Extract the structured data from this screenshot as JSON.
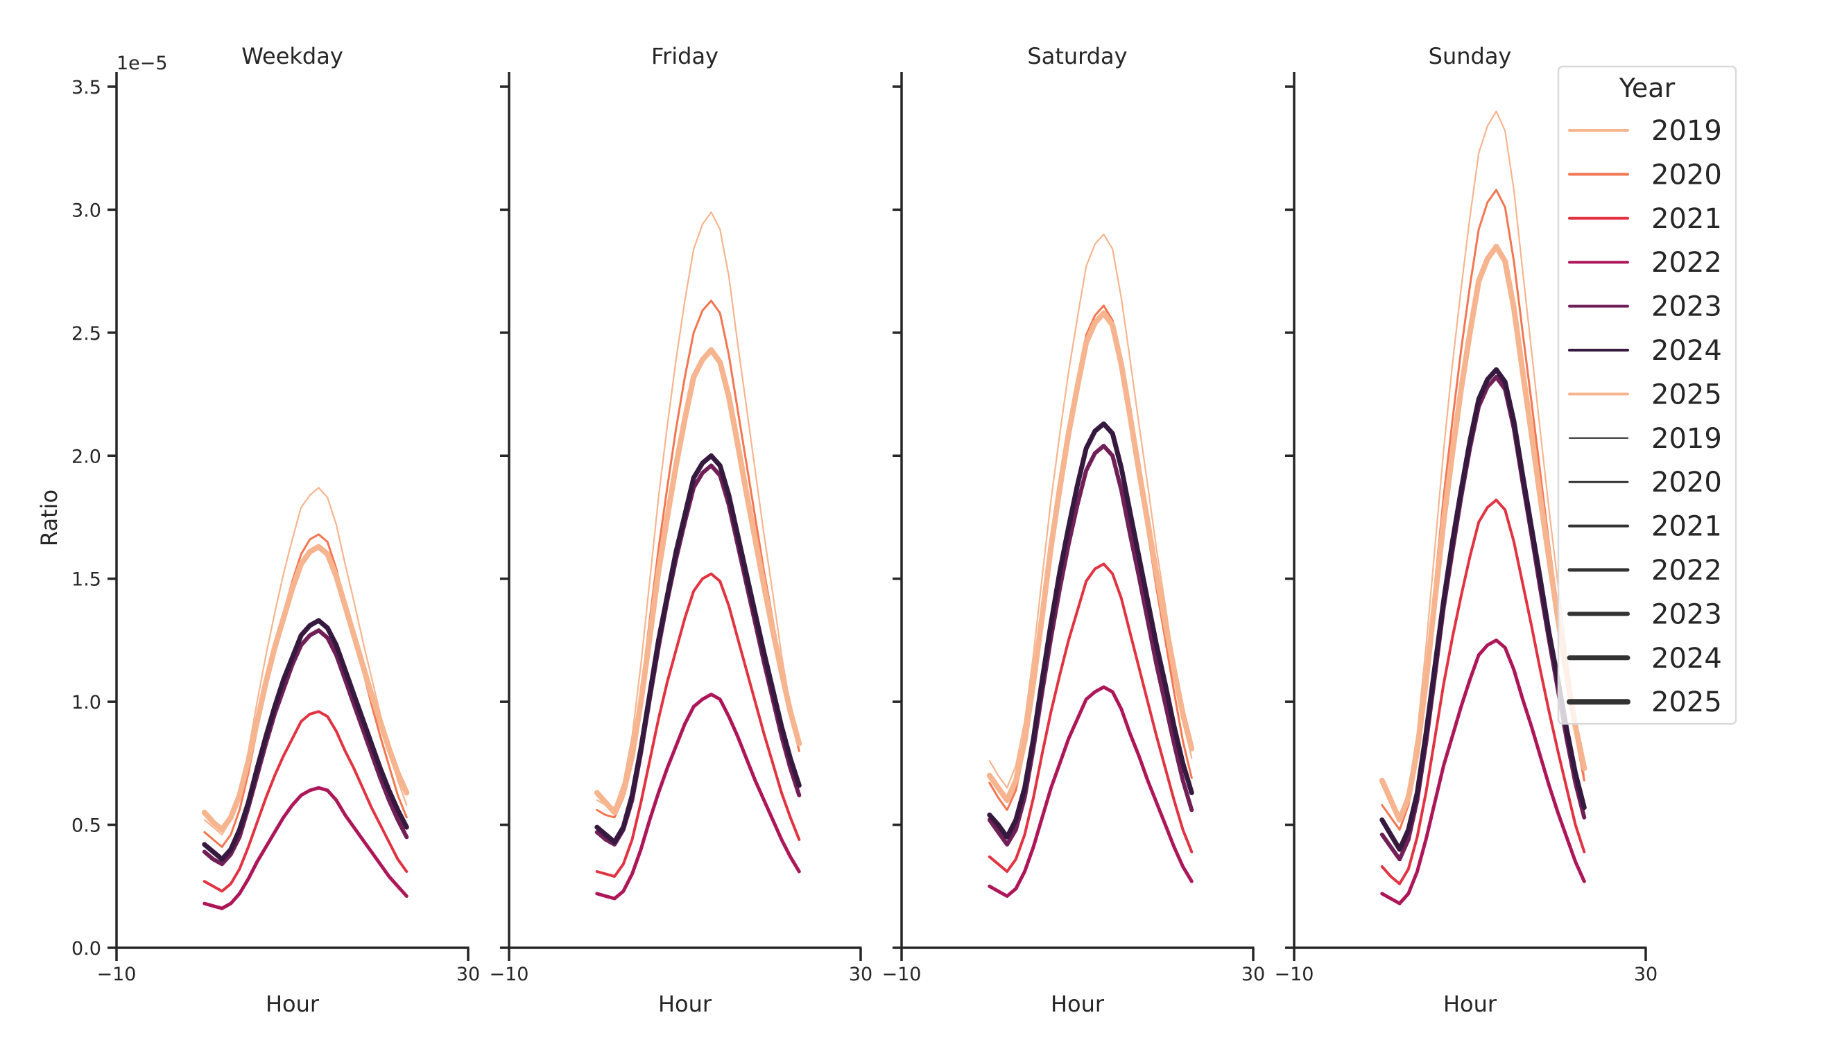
{
  "chart_data": {
    "type": "line",
    "y_offset_label": "1e−5",
    "ylabel": "Ratio",
    "xlabel": "Hour",
    "xlim": [
      -10,
      30
    ],
    "ylim": [
      0,
      3.5
    ],
    "xticks": [
      -10,
      30
    ],
    "xtick_labels": [
      "−10",
      "30"
    ],
    "yticks": [
      0,
      0.5,
      1.0,
      1.5,
      2.0,
      2.5,
      3.0,
      3.5
    ],
    "ytick_labels": [
      "0.0",
      "0.5",
      "1.0",
      "1.5",
      "2.0",
      "2.5",
      "3.0",
      "3.5"
    ],
    "y_scale": 1e-05,
    "grid": false,
    "x": [
      0,
      1,
      2,
      3,
      4,
      5,
      6,
      7,
      8,
      9,
      10,
      11,
      12,
      13,
      14,
      15,
      16,
      17,
      18,
      19,
      20,
      21,
      22,
      23
    ],
    "legend": {
      "title": "Year",
      "placement": "top-right",
      "hue_entries": [
        {
          "label": "2019",
          "color": "#f6b48f"
        },
        {
          "label": "2020",
          "color": "#f37651"
        },
        {
          "label": "2021",
          "color": "#e13342"
        },
        {
          "label": "2022",
          "color": "#ad1759"
        },
        {
          "label": "2023",
          "color": "#701f57"
        },
        {
          "label": "2024",
          "color": "#35193e"
        },
        {
          "label": "2025",
          "color": "#f6b48f"
        }
      ],
      "size_entries": [
        {
          "label": "2019",
          "width": 1
        },
        {
          "label": "2020",
          "width": 2
        },
        {
          "label": "2021",
          "width": 3
        },
        {
          "label": "2022",
          "width": 4
        },
        {
          "label": "2023",
          "width": 5
        },
        {
          "label": "2024",
          "width": 6
        },
        {
          "label": "2025",
          "width": 7
        }
      ],
      "size_color": "#333333"
    },
    "panels": [
      {
        "title": "Weekday",
        "series": [
          {
            "name": "2019",
            "values": [
              0.52,
              0.49,
              0.46,
              0.52,
              0.63,
              0.8,
              1.0,
              1.19,
              1.36,
              1.52,
              1.66,
              1.79,
              1.84,
              1.87,
              1.83,
              1.72,
              1.56,
              1.41,
              1.25,
              1.1,
              0.95,
              0.81,
              0.68,
              0.58
            ]
          },
          {
            "name": "2020",
            "values": [
              0.47,
              0.44,
              0.41,
              0.46,
              0.56,
              0.71,
              0.89,
              1.07,
              1.22,
              1.36,
              1.49,
              1.6,
              1.66,
              1.68,
              1.65,
              1.54,
              1.4,
              1.27,
              1.13,
              0.99,
              0.86,
              0.74,
              0.62,
              0.53
            ]
          },
          {
            "name": "2021",
            "values": [
              0.27,
              0.25,
              0.23,
              0.26,
              0.32,
              0.41,
              0.51,
              0.61,
              0.7,
              0.78,
              0.85,
              0.92,
              0.95,
              0.96,
              0.94,
              0.88,
              0.8,
              0.73,
              0.65,
              0.57,
              0.5,
              0.43,
              0.36,
              0.31
            ]
          },
          {
            "name": "2022",
            "values": [
              0.18,
              0.17,
              0.16,
              0.18,
              0.22,
              0.28,
              0.35,
              0.41,
              0.47,
              0.53,
              0.58,
              0.62,
              0.64,
              0.65,
              0.64,
              0.6,
              0.54,
              0.49,
              0.44,
              0.39,
              0.34,
              0.29,
              0.25,
              0.21
            ]
          },
          {
            "name": "2023",
            "values": [
              0.39,
              0.36,
              0.34,
              0.38,
              0.45,
              0.57,
              0.7,
              0.83,
              0.95,
              1.05,
              1.15,
              1.23,
              1.27,
              1.29,
              1.26,
              1.19,
              1.09,
              0.99,
              0.89,
              0.79,
              0.69,
              0.6,
              0.52,
              0.45
            ]
          },
          {
            "name": "2024",
            "values": [
              0.42,
              0.39,
              0.36,
              0.4,
              0.48,
              0.59,
              0.73,
              0.86,
              0.98,
              1.09,
              1.18,
              1.27,
              1.31,
              1.33,
              1.3,
              1.23,
              1.13,
              1.03,
              0.93,
              0.83,
              0.73,
              0.64,
              0.56,
              0.49
            ]
          },
          {
            "name": "2025",
            "values": [
              0.55,
              0.51,
              0.48,
              0.53,
              0.62,
              0.76,
              0.92,
              1.08,
              1.22,
              1.34,
              1.46,
              1.56,
              1.61,
              1.63,
              1.6,
              1.51,
              1.39,
              1.27,
              1.15,
              1.03,
              0.92,
              0.81,
              0.71,
              0.63
            ]
          }
        ]
      },
      {
        "title": "Friday",
        "series": [
          {
            "name": "2019",
            "values": [
              0.6,
              0.58,
              0.57,
              0.67,
              0.86,
              1.15,
              1.49,
              1.83,
              2.12,
              2.39,
              2.63,
              2.84,
              2.94,
              2.99,
              2.92,
              2.73,
              2.46,
              2.2,
              1.94,
              1.68,
              1.44,
              1.19,
              0.98,
              0.8
            ]
          },
          {
            "name": "2020",
            "values": [
              0.56,
              0.54,
              0.53,
              0.61,
              0.78,
              1.03,
              1.33,
              1.62,
              1.87,
              2.11,
              2.32,
              2.5,
              2.59,
              2.63,
              2.58,
              2.41,
              2.19,
              1.97,
              1.75,
              1.53,
              1.33,
              1.13,
              0.95,
              0.8
            ]
          },
          {
            "name": "2021",
            "values": [
              0.31,
              0.3,
              0.29,
              0.34,
              0.44,
              0.59,
              0.76,
              0.93,
              1.08,
              1.21,
              1.34,
              1.45,
              1.5,
              1.52,
              1.49,
              1.39,
              1.26,
              1.13,
              1.0,
              0.87,
              0.75,
              0.63,
              0.53,
              0.44
            ]
          },
          {
            "name": "2022",
            "values": [
              0.22,
              0.21,
              0.2,
              0.23,
              0.3,
              0.4,
              0.52,
              0.63,
              0.73,
              0.82,
              0.91,
              0.98,
              1.01,
              1.03,
              1.01,
              0.94,
              0.86,
              0.77,
              0.68,
              0.6,
              0.52,
              0.44,
              0.37,
              0.31
            ]
          },
          {
            "name": "2023",
            "values": [
              0.47,
              0.44,
              0.42,
              0.48,
              0.6,
              0.79,
              1.01,
              1.22,
              1.41,
              1.58,
              1.73,
              1.87,
              1.93,
              1.96,
              1.92,
              1.8,
              1.64,
              1.48,
              1.32,
              1.16,
              1.01,
              0.86,
              0.73,
              0.62
            ]
          },
          {
            "name": "2024",
            "values": [
              0.49,
              0.46,
              0.43,
              0.49,
              0.62,
              0.81,
              1.03,
              1.25,
              1.43,
              1.61,
              1.76,
              1.91,
              1.97,
              2.0,
              1.96,
              1.84,
              1.68,
              1.52,
              1.36,
              1.2,
              1.05,
              0.9,
              0.77,
              0.66
            ]
          },
          {
            "name": "2025",
            "values": [
              0.63,
              0.59,
              0.55,
              0.63,
              0.78,
              1.0,
              1.26,
              1.53,
              1.75,
              1.96,
              2.15,
              2.32,
              2.39,
              2.43,
              2.38,
              2.24,
              2.05,
              1.85,
              1.66,
              1.47,
              1.29,
              1.12,
              0.96,
              0.83
            ]
          }
        ]
      },
      {
        "title": "Saturday",
        "series": [
          {
            "name": "2019",
            "values": [
              0.76,
              0.7,
              0.65,
              0.74,
              0.92,
              1.19,
              1.51,
              1.82,
              2.09,
              2.34,
              2.56,
              2.77,
              2.86,
              2.9,
              2.84,
              2.64,
              2.39,
              2.13,
              1.88,
              1.62,
              1.39,
              1.15,
              0.94,
              0.77
            ]
          },
          {
            "name": "2020",
            "values": [
              0.67,
              0.61,
              0.56,
              0.64,
              0.81,
              1.05,
              1.34,
              1.63,
              1.87,
              2.1,
              2.3,
              2.49,
              2.57,
              2.61,
              2.55,
              2.38,
              2.15,
              1.92,
              1.69,
              1.46,
              1.25,
              1.04,
              0.84,
              0.69
            ]
          },
          {
            "name": "2021",
            "values": [
              0.37,
              0.34,
              0.31,
              0.36,
              0.46,
              0.61,
              0.79,
              0.96,
              1.11,
              1.25,
              1.37,
              1.49,
              1.54,
              1.56,
              1.52,
              1.42,
              1.28,
              1.14,
              1.0,
              0.86,
              0.73,
              0.6,
              0.48,
              0.39
            ]
          },
          {
            "name": "2022",
            "values": [
              0.25,
              0.23,
              0.21,
              0.24,
              0.31,
              0.41,
              0.53,
              0.65,
              0.75,
              0.85,
              0.93,
              1.01,
              1.04,
              1.06,
              1.04,
              0.97,
              0.87,
              0.78,
              0.68,
              0.59,
              0.5,
              0.41,
              0.33,
              0.27
            ]
          },
          {
            "name": "2023",
            "values": [
              0.52,
              0.47,
              0.42,
              0.48,
              0.61,
              0.81,
              1.04,
              1.26,
              1.46,
              1.64,
              1.8,
              1.94,
              2.01,
              2.04,
              2.0,
              1.86,
              1.68,
              1.51,
              1.33,
              1.15,
              0.99,
              0.83,
              0.68,
              0.56
            ]
          },
          {
            "name": "2024",
            "values": [
              0.54,
              0.5,
              0.45,
              0.52,
              0.65,
              0.85,
              1.09,
              1.32,
              1.53,
              1.71,
              1.88,
              2.03,
              2.1,
              2.13,
              2.09,
              1.95,
              1.77,
              1.59,
              1.41,
              1.23,
              1.07,
              0.9,
              0.75,
              0.63
            ]
          },
          {
            "name": "2025",
            "values": [
              0.7,
              0.65,
              0.6,
              0.68,
              0.84,
              1.08,
              1.35,
              1.63,
              1.87,
              2.09,
              2.28,
              2.46,
              2.54,
              2.58,
              2.53,
              2.37,
              2.16,
              1.94,
              1.73,
              1.52,
              1.32,
              1.13,
              0.95,
              0.81
            ]
          }
        ]
      },
      {
        "title": "Sunday",
        "series": [
          {
            "name": "2019",
            "values": [
              0.66,
              0.59,
              0.53,
              0.64,
              0.87,
              1.22,
              1.62,
              2.02,
              2.37,
              2.68,
              2.97,
              3.23,
              3.34,
              3.4,
              3.32,
              3.08,
              2.75,
              2.43,
              2.1,
              1.78,
              1.48,
              1.19,
              0.92,
              0.7
            ]
          },
          {
            "name": "2020",
            "values": [
              0.58,
              0.53,
              0.48,
              0.58,
              0.79,
              1.1,
              1.47,
              1.83,
              2.14,
              2.43,
              2.69,
              2.92,
              3.03,
              3.08,
              3.01,
              2.79,
              2.5,
              2.22,
              1.93,
              1.64,
              1.38,
              1.11,
              0.87,
              0.68
            ]
          },
          {
            "name": "2021",
            "values": [
              0.33,
              0.29,
              0.26,
              0.32,
              0.45,
              0.63,
              0.85,
              1.07,
              1.26,
              1.43,
              1.59,
              1.73,
              1.79,
              1.82,
              1.78,
              1.65,
              1.48,
              1.31,
              1.13,
              0.96,
              0.8,
              0.65,
              0.5,
              0.39
            ]
          },
          {
            "name": "2022",
            "values": [
              0.22,
              0.2,
              0.18,
              0.22,
              0.31,
              0.44,
              0.59,
              0.74,
              0.86,
              0.98,
              1.09,
              1.19,
              1.23,
              1.25,
              1.22,
              1.13,
              1.01,
              0.9,
              0.78,
              0.66,
              0.55,
              0.45,
              0.35,
              0.27
            ]
          },
          {
            "name": "2023",
            "values": [
              0.46,
              0.41,
              0.36,
              0.44,
              0.6,
              0.83,
              1.1,
              1.38,
              1.61,
              1.83,
              2.03,
              2.2,
              2.28,
              2.32,
              2.27,
              2.11,
              1.89,
              1.68,
              1.46,
              1.25,
              1.05,
              0.85,
              0.67,
              0.53
            ]
          },
          {
            "name": "2024",
            "values": [
              0.52,
              0.46,
              0.4,
              0.48,
              0.63,
              0.87,
              1.14,
              1.41,
              1.65,
              1.86,
              2.06,
              2.23,
              2.31,
              2.35,
              2.3,
              2.14,
              1.92,
              1.71,
              1.5,
              1.28,
              1.09,
              0.89,
              0.71,
              0.57
            ]
          },
          {
            "name": "2025",
            "values": [
              0.68,
              0.6,
              0.52,
              0.61,
              0.8,
              1.08,
              1.41,
              1.73,
              2.01,
              2.27,
              2.5,
              2.71,
              2.8,
              2.85,
              2.79,
              2.6,
              2.34,
              2.09,
              1.83,
              1.58,
              1.34,
              1.11,
              0.9,
              0.73
            ]
          }
        ]
      }
    ]
  }
}
